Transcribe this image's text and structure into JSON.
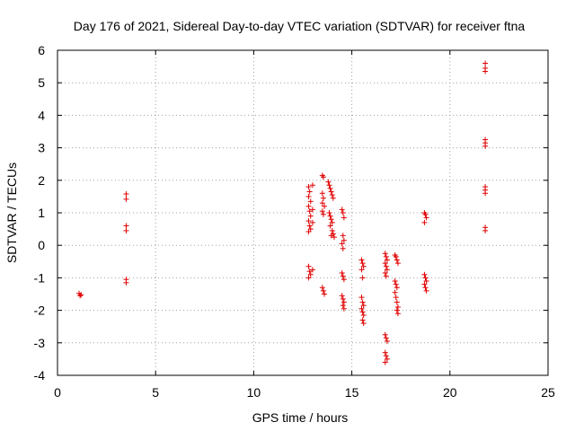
{
  "chart_data": {
    "type": "scatter",
    "title": "Day 176 of 2021, Sidereal Day-to-day VTEC variation (SDTVAR) for receiver ftna",
    "xlabel": "GPS time / hours",
    "ylabel": "SDTVAR / TECUs",
    "xlim": [
      0,
      25
    ],
    "ylim": [
      -4,
      6
    ],
    "xticks": [
      "0",
      "5",
      "10",
      "15",
      "20",
      "25"
    ],
    "yticks": [
      "-4",
      "-3",
      "-2",
      "-1",
      "0",
      "1",
      "2",
      "3",
      "4",
      "5",
      "6"
    ],
    "grid": true,
    "marker": "plus",
    "color": "#e00000",
    "series": [
      {
        "name": "SDTVAR",
        "points": [
          [
            1.1,
            -1.48
          ],
          [
            1.15,
            -1.55
          ],
          [
            1.2,
            -1.52
          ],
          [
            3.5,
            1.58
          ],
          [
            3.5,
            1.42
          ],
          [
            3.5,
            0.6
          ],
          [
            3.5,
            0.45
          ],
          [
            3.5,
            -1.05
          ],
          [
            3.5,
            -1.15
          ],
          [
            12.8,
            1.8
          ],
          [
            12.85,
            1.65
          ],
          [
            12.8,
            1.5
          ],
          [
            12.9,
            1.35
          ],
          [
            12.8,
            1.2
          ],
          [
            12.85,
            1.05
          ],
          [
            12.9,
            0.9
          ],
          [
            12.8,
            0.75
          ],
          [
            12.85,
            0.6
          ],
          [
            12.9,
            0.5
          ],
          [
            12.8,
            0.42
          ],
          [
            12.8,
            -0.65
          ],
          [
            12.85,
            -0.8
          ],
          [
            12.9,
            -0.9
          ],
          [
            12.8,
            -1.0
          ],
          [
            13.0,
            1.85
          ],
          [
            13.0,
            1.1
          ],
          [
            13.0,
            0.7
          ],
          [
            13.0,
            -0.75
          ],
          [
            13.5,
            2.15
          ],
          [
            13.55,
            2.1
          ],
          [
            13.5,
            1.6
          ],
          [
            13.55,
            1.45
          ],
          [
            13.5,
            1.3
          ],
          [
            13.6,
            1.2
          ],
          [
            13.5,
            1.05
          ],
          [
            13.55,
            0.95
          ],
          [
            13.5,
            -1.3
          ],
          [
            13.55,
            -1.4
          ],
          [
            13.6,
            -1.5
          ],
          [
            13.8,
            1.95
          ],
          [
            13.85,
            1.85
          ],
          [
            13.9,
            1.75
          ],
          [
            13.95,
            1.65
          ],
          [
            14.0,
            1.55
          ],
          [
            14.05,
            1.45
          ],
          [
            13.85,
            1.0
          ],
          [
            13.9,
            0.9
          ],
          [
            13.95,
            0.8
          ],
          [
            14.0,
            0.7
          ],
          [
            13.9,
            0.6
          ],
          [
            14.0,
            0.45
          ],
          [
            14.05,
            0.35
          ],
          [
            14.1,
            0.25
          ],
          [
            13.95,
            0.3
          ],
          [
            14.5,
            1.1
          ],
          [
            14.55,
            1.0
          ],
          [
            14.6,
            0.85
          ],
          [
            14.55,
            0.3
          ],
          [
            14.6,
            0.15
          ],
          [
            14.5,
            0.05
          ],
          [
            14.55,
            -0.1
          ],
          [
            14.5,
            -0.85
          ],
          [
            14.55,
            -0.95
          ],
          [
            14.6,
            -1.05
          ],
          [
            14.5,
            -1.55
          ],
          [
            14.55,
            -1.65
          ],
          [
            14.6,
            -1.75
          ],
          [
            14.55,
            -1.85
          ],
          [
            14.6,
            -1.95
          ],
          [
            15.5,
            -0.45
          ],
          [
            15.55,
            -0.55
          ],
          [
            15.6,
            -0.65
          ],
          [
            15.5,
            -0.75
          ],
          [
            15.55,
            -1.0
          ],
          [
            15.5,
            -1.6
          ],
          [
            15.55,
            -1.75
          ],
          [
            15.6,
            -1.85
          ],
          [
            15.5,
            -1.95
          ],
          [
            15.55,
            -2.05
          ],
          [
            15.6,
            -2.15
          ],
          [
            15.55,
            -2.3
          ],
          [
            15.6,
            -2.4
          ],
          [
            16.7,
            -0.25
          ],
          [
            16.75,
            -0.35
          ],
          [
            16.8,
            -0.45
          ],
          [
            16.7,
            -0.55
          ],
          [
            16.75,
            -0.65
          ],
          [
            16.8,
            -0.75
          ],
          [
            16.7,
            -0.85
          ],
          [
            16.75,
            -0.95
          ],
          [
            16.7,
            -2.75
          ],
          [
            16.75,
            -2.85
          ],
          [
            16.8,
            -2.95
          ],
          [
            16.7,
            -3.3
          ],
          [
            16.75,
            -3.4
          ],
          [
            16.8,
            -3.5
          ],
          [
            16.7,
            -3.6
          ],
          [
            17.2,
            -0.3
          ],
          [
            17.25,
            -0.35
          ],
          [
            17.3,
            -0.45
          ],
          [
            17.35,
            -0.55
          ],
          [
            17.2,
            -1.1
          ],
          [
            17.25,
            -1.2
          ],
          [
            17.3,
            -1.3
          ],
          [
            17.2,
            -1.45
          ],
          [
            17.25,
            -1.6
          ],
          [
            17.3,
            -1.75
          ],
          [
            17.35,
            -1.9
          ],
          [
            17.3,
            -2.0
          ],
          [
            17.35,
            -2.1
          ],
          [
            18.7,
            1.0
          ],
          [
            18.75,
            0.95
          ],
          [
            18.8,
            0.85
          ],
          [
            18.7,
            0.7
          ],
          [
            18.7,
            -0.9
          ],
          [
            18.75,
            -1.0
          ],
          [
            18.8,
            -1.1
          ],
          [
            18.7,
            -1.2
          ],
          [
            18.75,
            -1.3
          ],
          [
            18.8,
            -1.4
          ],
          [
            21.8,
            5.6
          ],
          [
            21.8,
            5.45
          ],
          [
            21.8,
            5.35
          ],
          [
            21.8,
            3.25
          ],
          [
            21.8,
            3.15
          ],
          [
            21.8,
            3.05
          ],
          [
            21.8,
            1.8
          ],
          [
            21.8,
            1.7
          ],
          [
            21.8,
            1.6
          ],
          [
            21.8,
            0.55
          ],
          [
            21.8,
            0.45
          ]
        ]
      }
    ]
  }
}
